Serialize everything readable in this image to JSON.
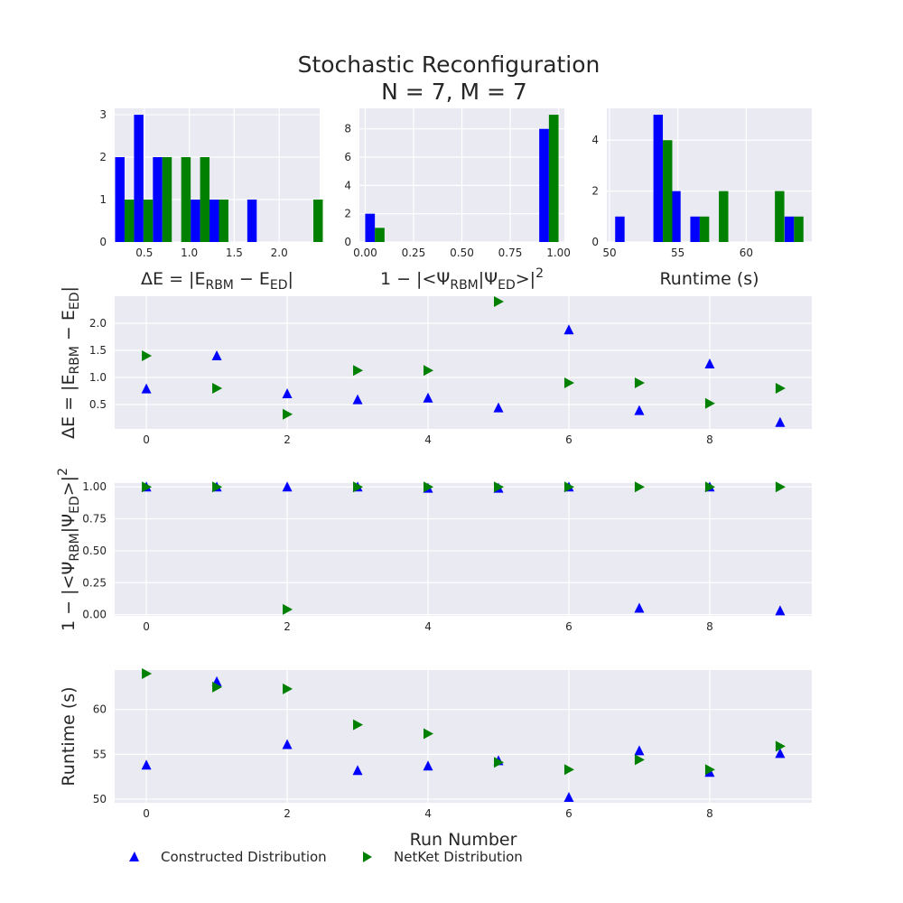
{
  "title_line1": "Stochastic Reconfiguration",
  "title_line2": "N = 7, M = 7",
  "colors": {
    "constructed": "#0000ff",
    "netket": "#008000",
    "axes_bg": "#eaeaf2",
    "grid": "#ffffff"
  },
  "legend": {
    "constructed_label": "Constructed Distribution",
    "netket_label": "NetKet Distribution"
  },
  "chart_data": [
    {
      "type": "bar",
      "panel": "hist-energy",
      "xlabel": "ΔE = |E_RBM − E_ED|",
      "xticks": [
        "0.5",
        "1.0",
        "1.5",
        "2.0"
      ],
      "yticks": [
        "0",
        "1",
        "2",
        "3"
      ],
      "xlim": [
        0.17,
        2.45
      ],
      "ylim": [
        0,
        3.15
      ],
      "bin_width": 0.21,
      "bin_centers": [
        0.28,
        0.49,
        0.7,
        0.91,
        1.12,
        1.33,
        1.54,
        1.75,
        1.96,
        2.17,
        2.38
      ],
      "series": [
        {
          "name": "Constructed Distribution",
          "values": [
            2,
            3,
            2,
            0,
            1,
            1,
            0,
            1,
            0,
            0,
            0
          ]
        },
        {
          "name": "NetKet Distribution",
          "values": [
            1,
            1,
            2,
            2,
            2,
            1,
            0,
            0,
            0,
            0,
            1
          ]
        }
      ]
    },
    {
      "type": "bar",
      "panel": "hist-overlap",
      "xlabel": "1 − |<Ψ_RBM|Ψ_ED>|²",
      "xticks": [
        "0.00",
        "0.25",
        "0.50",
        "0.75",
        "1.00"
      ],
      "yticks": [
        "0",
        "2",
        "4",
        "6",
        "8"
      ],
      "xlim": [
        -0.03,
        1.03
      ],
      "ylim": [
        0,
        9.45
      ],
      "bin_width": 0.1,
      "bin_centers": [
        0.05,
        0.15,
        0.25,
        0.35,
        0.45,
        0.55,
        0.65,
        0.75,
        0.85,
        0.95
      ],
      "series": [
        {
          "name": "Constructed Distribution",
          "values": [
            2,
            0,
            0,
            0,
            0,
            0,
            0,
            0,
            0,
            8
          ]
        },
        {
          "name": "NetKet Distribution",
          "values": [
            1,
            0,
            0,
            0,
            0,
            0,
            0,
            0,
            0,
            9
          ]
        }
      ]
    },
    {
      "type": "bar",
      "panel": "hist-runtime",
      "xlabel": "Runtime (s)",
      "xticks": [
        "50",
        "55",
        "60"
      ],
      "yticks": [
        "0",
        "2",
        "4"
      ],
      "xlim": [
        49.8,
        64.8
      ],
      "ylim": [
        0,
        5.25
      ],
      "bin_width": 1.38,
      "bin_centers": [
        51.1,
        52.5,
        53.9,
        55.2,
        56.6,
        58.0,
        59.4,
        60.8,
        62.1,
        63.5
      ],
      "series": [
        {
          "name": "Constructed Distribution",
          "values": [
            1,
            0,
            5,
            2,
            1,
            0,
            0,
            0,
            0,
            1
          ]
        },
        {
          "name": "NetKet Distribution",
          "values": [
            0,
            0,
            4,
            0,
            1,
            2,
            0,
            0,
            2,
            1
          ]
        }
      ]
    },
    {
      "type": "scatter",
      "panel": "scatter-energy",
      "ylabel": "ΔE = |E_RBM − E_ED|",
      "xticks": [
        "0",
        "2",
        "4",
        "6",
        "8"
      ],
      "yticks": [
        "0.5",
        "1.0",
        "1.5",
        "2.0"
      ],
      "xlim": [
        -0.45,
        9.45
      ],
      "ylim": [
        0.05,
        2.5
      ],
      "x": [
        0,
        1,
        2,
        3,
        4,
        5,
        6,
        7,
        8,
        9
      ],
      "series": [
        {
          "name": "Constructed Distribution",
          "marker": "triangle-up",
          "values": [
            0.79,
            1.4,
            0.7,
            0.59,
            0.62,
            0.44,
            1.88,
            0.39,
            1.25,
            0.17
          ]
        },
        {
          "name": "NetKet Distribution",
          "marker": "triangle-right",
          "values": [
            1.4,
            0.8,
            0.32,
            1.13,
            1.13,
            2.4,
            0.9,
            0.9,
            0.52,
            0.8
          ]
        }
      ]
    },
    {
      "type": "scatter",
      "panel": "scatter-overlap",
      "ylabel": "1 − |<Ψ_RBM|Ψ_ED>|²",
      "xticks": [
        "0",
        "2",
        "4",
        "6",
        "8"
      ],
      "yticks": [
        "0.00",
        "0.25",
        "0.50",
        "0.75",
        "1.00"
      ],
      "xlim": [
        -0.45,
        9.45
      ],
      "ylim": [
        -0.01,
        1.03
      ],
      "x": [
        0,
        1,
        2,
        3,
        4,
        5,
        6,
        7,
        8,
        9
      ],
      "series": [
        {
          "name": "Constructed Distribution",
          "marker": "triangle-up",
          "values": [
            1.0,
            1.0,
            1.0,
            1.0,
            0.99,
            0.99,
            1.0,
            0.05,
            1.0,
            0.03
          ]
        },
        {
          "name": "NetKet Distribution",
          "marker": "triangle-right",
          "values": [
            1.0,
            1.0,
            0.04,
            1.0,
            1.0,
            1.0,
            1.0,
            1.0,
            1.0,
            1.0
          ]
        }
      ]
    },
    {
      "type": "scatter",
      "panel": "scatter-runtime",
      "xlabel": "Run Number",
      "ylabel": "Runtime (s)",
      "xticks": [
        "0",
        "2",
        "4",
        "6",
        "8"
      ],
      "yticks": [
        "50",
        "55",
        "60"
      ],
      "xlim": [
        -0.45,
        9.45
      ],
      "ylim": [
        49.6,
        64.4
      ],
      "x": [
        0,
        1,
        2,
        3,
        4,
        5,
        6,
        7,
        8,
        9
      ],
      "series": [
        {
          "name": "Constructed Distribution",
          "marker": "triangle-up",
          "values": [
            53.8,
            63.1,
            56.1,
            53.2,
            53.7,
            54.3,
            50.2,
            55.4,
            53.0,
            55.1
          ]
        },
        {
          "name": "NetKet Distribution",
          "marker": "triangle-right",
          "values": [
            64.0,
            62.5,
            62.3,
            58.3,
            57.3,
            54.1,
            53.3,
            54.4,
            53.3,
            55.9
          ]
        }
      ]
    }
  ]
}
